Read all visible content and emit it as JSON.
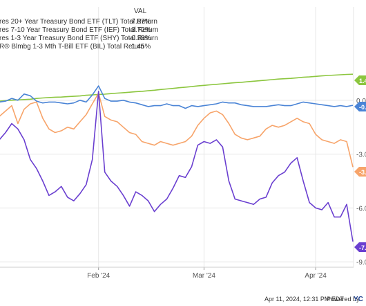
{
  "legend": {
    "header": "VAL",
    "rows": [
      {
        "label": "res 20+ Year Treasury Bond ETF (TLT) Total Return",
        "value": "-7.87%"
      },
      {
        "label": "res 7-10 Year Treasury Bond ETF (IEF) Total Return",
        "value": "-3.72%"
      },
      {
        "label": "res 1-3 Year Treasury Bond ETF (SHY) Total Return",
        "value": "-0.28%"
      },
      {
        "label": "R® Blmbg 1-3 Mth T-Bill ETF (BIL) Total Return",
        "value": "1.45%"
      }
    ]
  },
  "badges": [
    "1.4",
    "-0.",
    "-3.",
    "-7."
  ],
  "footer": {
    "timestamp": "Apr 11, 2024, 12:31 PM EDT",
    "powered_by": "Powered by",
    "brand": "YC"
  },
  "colors": {
    "grid": "#e6e6e6",
    "axis_text": "#555555"
  },
  "chart_data": {
    "type": "line",
    "x_ticks": [
      "Feb '24",
      "Mar '24",
      "Apr '24"
    ],
    "y_ticks": [
      "0.0",
      "-3.0",
      "-6.0",
      "-9.0"
    ],
    "ylim": [
      -9.3,
      2.5
    ],
    "x_index_range": [
      0,
      57
    ],
    "x_tick_index": [
      16,
      33,
      51
    ],
    "grid": true,
    "series": [
      {
        "name": "R® Blmbg 1-3 Mth T-Bill ETF (BIL) Total Return",
        "color": "#8cc63f",
        "values": [
          -0.05,
          -0.02,
          0.0,
          0.02,
          0.04,
          0.06,
          0.1,
          0.13,
          0.15,
          0.17,
          0.18,
          0.2,
          0.22,
          0.24,
          0.28,
          0.3,
          0.32,
          0.34,
          0.37,
          0.4,
          0.42,
          0.45,
          0.48,
          0.5,
          0.53,
          0.56,
          0.6,
          0.63,
          0.66,
          0.7,
          0.73,
          0.76,
          0.8,
          0.83,
          0.86,
          0.89,
          0.92,
          0.95,
          0.98,
          1.0,
          1.03,
          1.06,
          1.09,
          1.12,
          1.15,
          1.18,
          1.2,
          1.22,
          1.25,
          1.28,
          1.3,
          1.33,
          1.36,
          1.38,
          1.4,
          1.42,
          1.44,
          1.45
        ]
      },
      {
        "name": "res 1-3 Year Treasury Bond ETF (SHY) Total Return",
        "color": "#4a84d6",
        "values": [
          -0.1,
          -0.05,
          0.1,
          0.0,
          0.35,
          0.25,
          -0.05,
          -0.15,
          -0.1,
          -0.1,
          -0.15,
          -0.2,
          -0.15,
          0.0,
          -0.1,
          0.3,
          0.8,
          0.1,
          -0.05,
          -0.05,
          0.0,
          -0.1,
          -0.15,
          -0.25,
          -0.35,
          -0.3,
          -0.3,
          -0.2,
          -0.3,
          -0.3,
          -0.45,
          -0.3,
          -0.35,
          -0.3,
          -0.25,
          -0.2,
          -0.1,
          -0.15,
          -0.15,
          -0.25,
          -0.3,
          -0.35,
          -0.35,
          -0.35,
          -0.3,
          -0.25,
          -0.3,
          -0.3,
          -0.2,
          -0.1,
          -0.15,
          -0.2,
          -0.25,
          -0.3,
          -0.35,
          -0.3,
          -0.35,
          -0.28
        ]
      },
      {
        "name": "res 7-10 Year Treasury Bond ETF (IEF) Total Return",
        "color": "#f7a46a",
        "values": [
          -0.9,
          -0.6,
          -0.3,
          -1.3,
          -0.5,
          -0.2,
          -0.1,
          -1.0,
          -1.6,
          -1.8,
          -1.7,
          -1.5,
          -1.6,
          -1.2,
          -0.8,
          -0.2,
          0.4,
          -0.9,
          -1.1,
          -1.2,
          -1.5,
          -1.8,
          -1.9,
          -2.3,
          -2.4,
          -2.5,
          -2.3,
          -2.4,
          -2.5,
          -2.4,
          -2.3,
          -2.0,
          -1.4,
          -1.0,
          -0.7,
          -0.6,
          -0.8,
          -1.3,
          -1.9,
          -2.1,
          -2.2,
          -2.1,
          -2.0,
          -1.6,
          -1.4,
          -1.5,
          -1.4,
          -1.2,
          -1.0,
          -1.2,
          -1.3,
          -1.9,
          -2.2,
          -2.3,
          -2.4,
          -2.2,
          -2.3,
          -3.72
        ]
      },
      {
        "name": "res 20+ Year Treasury Bond ETF (TLT) Total Return",
        "color": "#6a3fd0",
        "values": [
          -2.2,
          -1.8,
          -1.3,
          -1.6,
          -2.2,
          -3.3,
          -3.8,
          -4.5,
          -5.3,
          -5.1,
          -4.8,
          -5.4,
          -5.6,
          -5.2,
          -4.7,
          -3.3,
          0.5,
          -4.0,
          -4.5,
          -4.8,
          -5.3,
          -5.9,
          -5.1,
          -5.3,
          -5.6,
          -6.2,
          -5.8,
          -5.5,
          -4.9,
          -4.2,
          -4.3,
          -3.7,
          -2.5,
          -2.3,
          -2.4,
          -2.2,
          -2.6,
          -4.5,
          -5.5,
          -5.6,
          -5.7,
          -5.8,
          -5.5,
          -5.4,
          -4.6,
          -4.2,
          -4.0,
          -3.5,
          -3.2,
          -4.5,
          -5.7,
          -6.0,
          -6.1,
          -5.7,
          -6.5,
          -6.5,
          -5.8,
          -7.87
        ]
      }
    ]
  }
}
